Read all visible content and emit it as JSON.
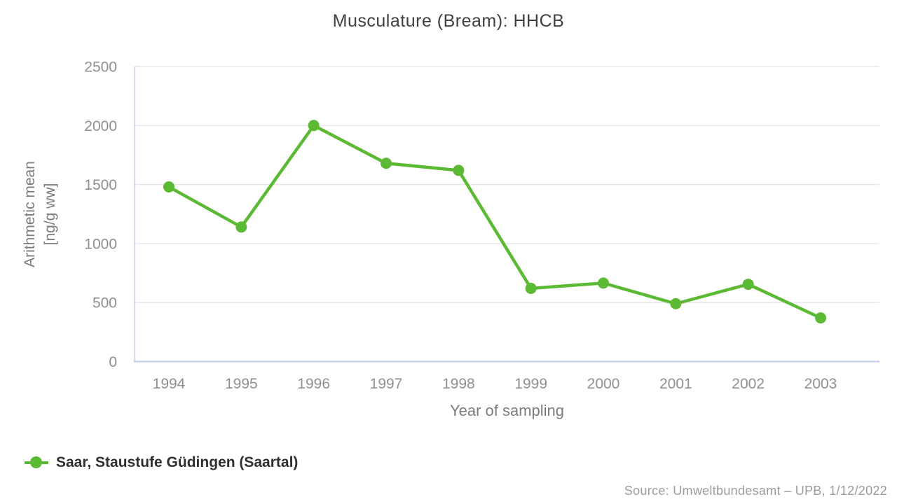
{
  "chart_data": {
    "type": "line",
    "title": "Musculature (Bream): HHCB",
    "xlabel": "Year of sampling",
    "ylabel_lines": [
      "Arithmetic mean",
      "[ng/g ww]"
    ],
    "categories": [
      "1994",
      "1995",
      "1996",
      "1997",
      "1998",
      "1999",
      "2000",
      "2001",
      "2002",
      "2003"
    ],
    "series": [
      {
        "name": "Saar, Staustufe Güdingen (Saartal)",
        "color": "#5cb933",
        "values": [
          1480,
          1140,
          2000,
          1680,
          1620,
          620,
          665,
          490,
          655,
          370
        ]
      }
    ],
    "ylim": [
      0,
      2500
    ],
    "yticks": [
      0,
      500,
      1000,
      1500,
      2000,
      2500
    ],
    "grid": true,
    "legend_position": "bottom-left"
  },
  "footer": {
    "source": "Source: Umweltbundesamt – UPB, 1/12/2022"
  },
  "colors": {
    "series_green": "#5cb933",
    "axis_line": "#c8d4ea",
    "grid_line": "#e6e6e6",
    "tick_label": "#8f8f8f",
    "axis_title": "#7c7c7c",
    "title_text": "#404040",
    "legend_text": "#2f2f2f",
    "source_text": "#9c9c9c"
  }
}
